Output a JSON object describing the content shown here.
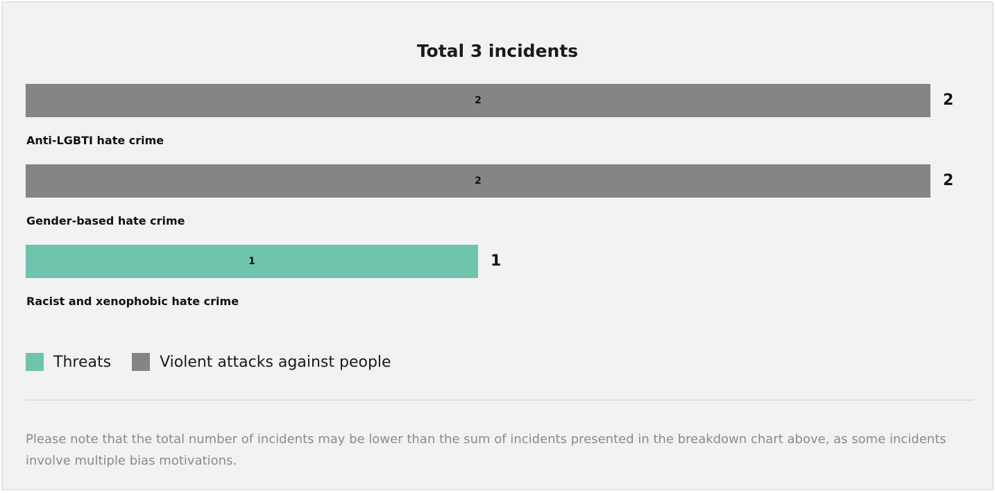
{
  "chart_data": {
    "type": "bar",
    "orientation": "horizontal",
    "stacked": true,
    "title": "Total 3 incidents",
    "categories": [
      "Anti-LGBTI hate crime",
      "Gender-based hate crime",
      "Racist and xenophobic hate crime"
    ],
    "totals": [
      2,
      2,
      1
    ],
    "series": [
      {
        "name": "Threats",
        "color": "#6fc4ad",
        "values": [
          0,
          0,
          1
        ]
      },
      {
        "name": "Violent attacks against people",
        "color": "#858585",
        "values": [
          2,
          2,
          0
        ]
      }
    ],
    "xlim": [
      0,
      2
    ],
    "grid": false,
    "legend_position": "bottom-left",
    "data_labels": true
  },
  "legend": {
    "items": [
      {
        "label": "Threats",
        "color": "#6fc4ad"
      },
      {
        "label": "Violent attacks against people",
        "color": "#858585"
      }
    ]
  },
  "footnote": "Please note that the total number of incidents may be lower than the sum of incidents presented in the breakdown chart above, as some incidents involve multiple bias motivations."
}
